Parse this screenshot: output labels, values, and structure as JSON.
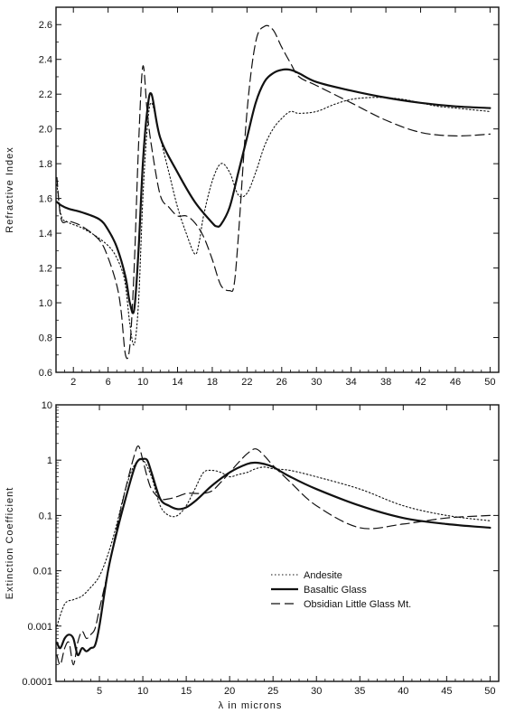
{
  "chart_data": [
    {
      "type": "line",
      "ylabel": "Refractive Index",
      "xlim": [
        0,
        51
      ],
      "ylim": [
        0.6,
        2.7
      ],
      "x_ticks": [
        2,
        6,
        10,
        14,
        18,
        22,
        26,
        30,
        34,
        38,
        42,
        46,
        50
      ],
      "y_ticks": [
        0.6,
        0.8,
        1.0,
        1.2,
        1.4,
        1.6,
        1.8,
        2.0,
        2.2,
        2.4,
        2.6
      ],
      "x_tick_labels": [
        "2",
        "6",
        "10",
        "14",
        "18",
        "22",
        "26",
        "30",
        "34",
        "38",
        "42",
        "46",
        "50"
      ],
      "y_tick_labels": [
        "0.6",
        "0.8",
        "1.0",
        "1.2",
        "1.4",
        "1.6",
        "1.8",
        "2.0",
        "2.2",
        "2.4",
        "2.6"
      ],
      "grid": false,
      "series": [
        {
          "name": "Andesite",
          "style": "dotted",
          "x": [
            0.1,
            0.6,
            1.5,
            3,
            5,
            6.5,
            7.5,
            8,
            8.5,
            9,
            9.5,
            10,
            10.5,
            11,
            12,
            13,
            14,
            15,
            16,
            16.5,
            17,
            18,
            19,
            20,
            21,
            22,
            23,
            24,
            25,
            26,
            27,
            28,
            30,
            32,
            34,
            36,
            38,
            40,
            42,
            44,
            46,
            48,
            50
          ],
          "y": [
            1.68,
            1.5,
            1.46,
            1.43,
            1.37,
            1.3,
            1.2,
            1.1,
            0.88,
            0.76,
            1.0,
            1.6,
            2.0,
            2.15,
            1.95,
            1.75,
            1.55,
            1.4,
            1.28,
            1.35,
            1.5,
            1.7,
            1.8,
            1.75,
            1.62,
            1.63,
            1.75,
            1.9,
            2.0,
            2.06,
            2.1,
            2.09,
            2.1,
            2.14,
            2.17,
            2.18,
            2.18,
            2.17,
            2.15,
            2.13,
            2.12,
            2.11,
            2.1
          ]
        },
        {
          "name": "Basaltic Glass",
          "style": "solid",
          "x": [
            0.1,
            0.6,
            1.5,
            3,
            5,
            6,
            7,
            8,
            8.5,
            9,
            9.5,
            10,
            10.5,
            11,
            12,
            14,
            16,
            18,
            18.5,
            19,
            20,
            21,
            22,
            23,
            24,
            25,
            26,
            27,
            28,
            30,
            34,
            38,
            42,
            46,
            50
          ],
          "y": [
            1.58,
            1.56,
            1.54,
            1.52,
            1.48,
            1.42,
            1.32,
            1.15,
            1.0,
            0.96,
            1.3,
            1.8,
            2.1,
            2.2,
            1.95,
            1.75,
            1.58,
            1.46,
            1.44,
            1.45,
            1.55,
            1.75,
            1.95,
            2.15,
            2.27,
            2.32,
            2.34,
            2.34,
            2.32,
            2.27,
            2.22,
            2.18,
            2.15,
            2.13,
            2.12
          ]
        },
        {
          "name": "Obsidian  Little Glass Mt.",
          "style": "dashed",
          "x": [
            0.1,
            0.6,
            1.5,
            3,
            5,
            6,
            7,
            7.5,
            8,
            8.5,
            9,
            9.5,
            10,
            10.5,
            11,
            12,
            13,
            14,
            15,
            16,
            17,
            18,
            19,
            20,
            20.5,
            21,
            22,
            23,
            24,
            25,
            26,
            27,
            28,
            30,
            34,
            38,
            42,
            46,
            50
          ],
          "y": [
            1.72,
            1.48,
            1.47,
            1.44,
            1.36,
            1.26,
            1.1,
            0.95,
            0.7,
            0.75,
            1.2,
            1.9,
            2.36,
            2.1,
            1.9,
            1.62,
            1.55,
            1.5,
            1.5,
            1.46,
            1.38,
            1.25,
            1.1,
            1.07,
            1.1,
            1.38,
            2.1,
            2.5,
            2.59,
            2.57,
            2.47,
            2.38,
            2.3,
            2.25,
            2.15,
            2.05,
            1.98,
            1.96,
            1.97
          ]
        }
      ]
    },
    {
      "type": "line",
      "xlabel": "λ in microns",
      "ylabel": "Extinction Coefficient",
      "xlim": [
        0,
        51
      ],
      "ylim": [
        0.0001,
        10
      ],
      "y_scale": "log",
      "x_ticks": [
        5,
        10,
        15,
        20,
        25,
        30,
        35,
        40,
        45,
        50
      ],
      "y_ticks": [
        0.0001,
        0.001,
        0.01,
        0.1,
        1,
        10
      ],
      "x_tick_labels": [
        "5",
        "10",
        "15",
        "20",
        "25",
        "30",
        "35",
        "40",
        "45",
        "50"
      ],
      "y_tick_labels": [
        "0.0001",
        "0.001",
        "0.01",
        "0.1",
        "1",
        "10"
      ],
      "grid": false,
      "legend_position": "lower-right",
      "series": [
        {
          "name": "Andesite",
          "style": "dotted",
          "x": [
            0.1,
            1,
            2,
            3,
            4,
            5,
            6,
            7,
            8,
            9,
            10,
            11,
            12,
            13,
            14,
            15,
            16,
            17,
            18,
            19,
            20,
            21,
            22,
            23,
            24,
            25,
            27,
            30,
            35,
            40,
            45,
            50
          ],
          "y": [
            0.001,
            0.0025,
            0.003,
            0.0035,
            0.005,
            0.008,
            0.02,
            0.07,
            0.3,
            0.8,
            1.0,
            0.5,
            0.15,
            0.1,
            0.1,
            0.15,
            0.3,
            0.6,
            0.65,
            0.6,
            0.5,
            0.55,
            0.6,
            0.7,
            0.75,
            0.7,
            0.65,
            0.5,
            0.3,
            0.15,
            0.1,
            0.08
          ]
        },
        {
          "name": "Basaltic Glass",
          "style": "solid",
          "x": [
            0.1,
            0.5,
            1,
            1.5,
            2,
            2.5,
            3,
            3.5,
            4,
            4.5,
            5,
            6,
            7,
            8,
            9,
            9.5,
            10,
            10.5,
            11,
            12,
            13,
            14,
            15,
            16,
            17,
            18,
            20,
            22,
            23,
            24,
            25,
            27,
            30,
            35,
            40,
            45,
            50
          ],
          "y": [
            0.0005,
            0.0004,
            0.0006,
            0.0007,
            0.0006,
            0.0003,
            0.0004,
            0.00035,
            0.0004,
            0.00045,
            0.001,
            0.01,
            0.05,
            0.2,
            0.7,
            1.0,
            1.05,
            1.0,
            0.6,
            0.2,
            0.15,
            0.13,
            0.14,
            0.18,
            0.25,
            0.35,
            0.6,
            0.85,
            0.9,
            0.85,
            0.75,
            0.5,
            0.3,
            0.15,
            0.09,
            0.07,
            0.06
          ]
        },
        {
          "name": "Obsidian  Little Glass Mt.",
          "style": "dashed",
          "x": [
            0.1,
            0.5,
            1,
            1.5,
            2,
            2.5,
            3,
            3.5,
            4,
            4.5,
            5,
            6,
            7,
            8,
            9,
            9.5,
            10,
            10.5,
            11,
            12,
            13,
            14,
            15,
            16,
            17,
            18,
            19,
            20,
            21,
            22,
            23,
            24,
            25,
            27,
            30,
            35,
            40,
            45,
            50
          ],
          "y": [
            0.0003,
            0.0002,
            0.0004,
            0.0005,
            0.0002,
            0.0005,
            0.0008,
            0.0006,
            0.0007,
            0.0009,
            0.002,
            0.01,
            0.06,
            0.3,
            1.2,
            1.8,
            1.0,
            0.5,
            0.3,
            0.2,
            0.2,
            0.22,
            0.25,
            0.25,
            0.25,
            0.28,
            0.4,
            0.6,
            0.9,
            1.3,
            1.6,
            1.2,
            0.8,
            0.4,
            0.15,
            0.06,
            0.07,
            0.09,
            0.1
          ]
        }
      ]
    }
  ]
}
